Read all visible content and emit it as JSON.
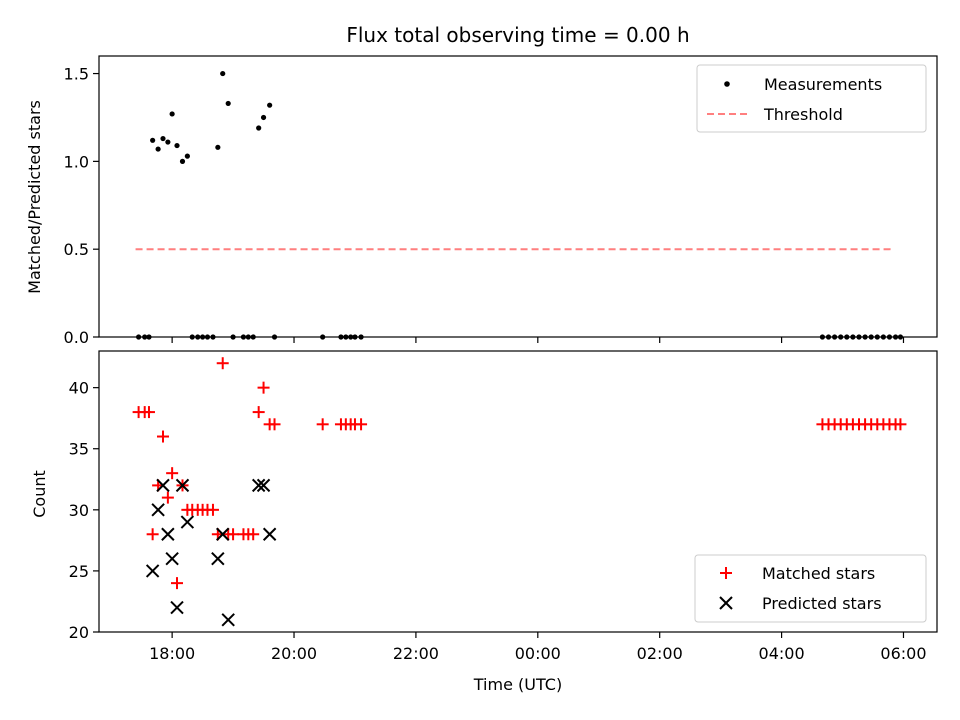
{
  "chart_data": [
    {
      "type": "scatter",
      "title": "Flux total observing time = 0.00 h",
      "xlabel": "",
      "ylabel": "Matched/Predicted stars",
      "ylim": [
        0,
        1.6
      ],
      "yticks": [
        0.0,
        0.5,
        1.0,
        1.5
      ],
      "ytick_labels": [
        "0.0",
        "0.5",
        "1.0",
        "1.5"
      ],
      "legend_position": "top-right",
      "series": [
        {
          "name": "Measurements",
          "kind": "points",
          "color": "#000000",
          "points": [
            [
              17.45,
              0
            ],
            [
              17.55,
              0
            ],
            [
              17.62,
              0
            ],
            [
              17.68,
              1.12
            ],
            [
              17.77,
              1.07
            ],
            [
              17.85,
              1.13
            ],
            [
              17.93,
              1.11
            ],
            [
              18.0,
              1.27
            ],
            [
              18.08,
              1.09
            ],
            [
              18.17,
              1.0
            ],
            [
              18.25,
              1.03
            ],
            [
              18.33,
              0
            ],
            [
              18.42,
              0
            ],
            [
              18.5,
              0
            ],
            [
              18.58,
              0
            ],
            [
              18.67,
              0
            ],
            [
              18.75,
              1.08
            ],
            [
              18.83,
              1.5
            ],
            [
              18.92,
              1.33
            ],
            [
              19.0,
              0
            ],
            [
              19.17,
              0
            ],
            [
              19.25,
              0
            ],
            [
              19.33,
              0
            ],
            [
              19.42,
              1.19
            ],
            [
              19.5,
              1.25
            ],
            [
              19.6,
              1.32
            ],
            [
              19.68,
              0
            ],
            [
              20.47,
              0
            ],
            [
              20.77,
              0
            ],
            [
              20.85,
              0
            ],
            [
              20.93,
              0
            ],
            [
              21.0,
              0
            ],
            [
              21.1,
              0
            ],
            [
              28.67,
              0
            ],
            [
              28.77,
              0
            ],
            [
              28.87,
              0
            ],
            [
              28.97,
              0
            ],
            [
              29.07,
              0
            ],
            [
              29.17,
              0
            ],
            [
              29.27,
              0
            ],
            [
              29.37,
              0
            ],
            [
              29.47,
              0
            ],
            [
              29.57,
              0
            ],
            [
              29.67,
              0
            ],
            [
              29.77,
              0
            ],
            [
              29.87,
              0
            ],
            [
              29.95,
              0
            ]
          ]
        },
        {
          "name": "Threshold",
          "kind": "dashed-line",
          "color": "#ff7f7f",
          "points": [
            [
              17.4,
              0.5
            ],
            [
              29.85,
              0.5
            ]
          ]
        }
      ]
    },
    {
      "type": "scatter",
      "title": "",
      "xlabel": "Time (UTC)",
      "ylabel": "Count",
      "ylim": [
        20,
        43
      ],
      "yticks": [
        20,
        25,
        30,
        35,
        40
      ],
      "ytick_labels": [
        "20",
        "25",
        "30",
        "35",
        "40"
      ],
      "xlim": [
        16.8,
        30.55
      ],
      "xticks": [
        18,
        20,
        22,
        24,
        26,
        28,
        30
      ],
      "xtick_labels": [
        "18:00",
        "20:00",
        "22:00",
        "00:00",
        "02:00",
        "04:00",
        "06:00"
      ],
      "legend_position": "bottom-right",
      "series": [
        {
          "name": "Matched stars",
          "marker": "plus",
          "color": "#ff0000",
          "points": [
            [
              17.45,
              38
            ],
            [
              17.55,
              38
            ],
            [
              17.62,
              38
            ],
            [
              17.68,
              28
            ],
            [
              17.77,
              32
            ],
            [
              17.85,
              36
            ],
            [
              17.93,
              31
            ],
            [
              18.0,
              33
            ],
            [
              18.08,
              24
            ],
            [
              18.17,
              32
            ],
            [
              18.25,
              30
            ],
            [
              18.33,
              30
            ],
            [
              18.42,
              30
            ],
            [
              18.5,
              30
            ],
            [
              18.58,
              30
            ],
            [
              18.67,
              30
            ],
            [
              18.75,
              28
            ],
            [
              18.83,
              42
            ],
            [
              18.92,
              28
            ],
            [
              19.0,
              28
            ],
            [
              19.17,
              28
            ],
            [
              19.25,
              28
            ],
            [
              19.33,
              28
            ],
            [
              19.42,
              38
            ],
            [
              19.5,
              40
            ],
            [
              19.6,
              37
            ],
            [
              19.68,
              37
            ],
            [
              20.47,
              37
            ],
            [
              20.77,
              37
            ],
            [
              20.85,
              37
            ],
            [
              20.93,
              37
            ],
            [
              21.0,
              37
            ],
            [
              21.1,
              37
            ],
            [
              28.67,
              37
            ],
            [
              28.77,
              37
            ],
            [
              28.87,
              37
            ],
            [
              28.97,
              37
            ],
            [
              29.07,
              37
            ],
            [
              29.17,
              37
            ],
            [
              29.27,
              37
            ],
            [
              29.37,
              37
            ],
            [
              29.47,
              37
            ],
            [
              29.57,
              37
            ],
            [
              29.67,
              37
            ],
            [
              29.77,
              37
            ],
            [
              29.87,
              37
            ],
            [
              29.95,
              37
            ]
          ]
        },
        {
          "name": "Predicted stars",
          "marker": "x",
          "color": "#000000",
          "points": [
            [
              17.68,
              25
            ],
            [
              17.77,
              30
            ],
            [
              17.85,
              32
            ],
            [
              17.93,
              28
            ],
            [
              18.0,
              26
            ],
            [
              18.08,
              22
            ],
            [
              18.17,
              32
            ],
            [
              18.25,
              29
            ],
            [
              18.75,
              26
            ],
            [
              18.83,
              28
            ],
            [
              18.92,
              21
            ],
            [
              19.42,
              32
            ],
            [
              19.5,
              32
            ],
            [
              19.6,
              28
            ]
          ]
        }
      ]
    }
  ]
}
